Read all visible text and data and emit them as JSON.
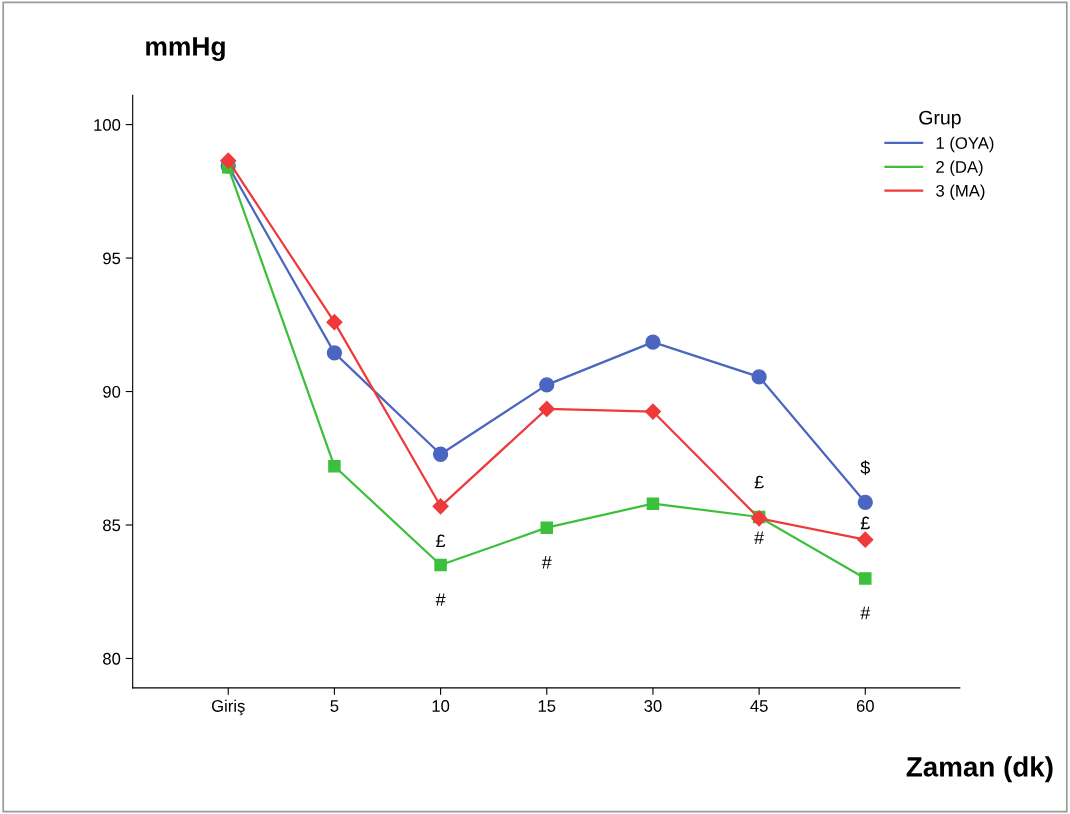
{
  "chart_data": {
    "type": "line",
    "ylabel": "mmHg",
    "xlabel": "Zaman (dk)",
    "legend_title": "Grup",
    "legend": "top right",
    "grid": false,
    "categories": [
      "Giriş",
      "5",
      "10",
      "15",
      "30",
      "45",
      "60"
    ],
    "ylim": [
      78.9,
      101.1
    ],
    "yticks": [
      80,
      85,
      90,
      95,
      100
    ],
    "series": [
      {
        "name": "1 (OYA)",
        "color": "#4a66c0",
        "marker": "circle",
        "values": [
          98.45,
          91.45,
          87.65,
          90.25,
          91.85,
          90.55,
          85.85
        ]
      },
      {
        "name": "2 (DA)",
        "color": "#3cc03c",
        "marker": "square",
        "values": [
          98.4,
          87.2,
          83.5,
          84.9,
          85.8,
          85.3,
          83.0
        ]
      },
      {
        "name": "3 (MA)",
        "color": "#ee3a3a",
        "marker": "diamond",
        "values": [
          98.65,
          92.6,
          85.7,
          89.35,
          89.25,
          85.25,
          84.45
        ]
      }
    ],
    "annotations": [
      {
        "text": "£",
        "x": "10",
        "y": 85.7
      },
      {
        "text": "#",
        "x": "10",
        "y": 83.5
      },
      {
        "text": "#",
        "x": "15",
        "y": 84.9
      },
      {
        "text": "£",
        "x": "45",
        "y": 85.3
      },
      {
        "text": "#",
        "x": "45",
        "y": 85.3
      },
      {
        "text": "$",
        "x": "60",
        "y": 85.85
      },
      {
        "text": "£",
        "x": "60",
        "y": 85.85
      },
      {
        "text": "#",
        "x": "60",
        "y": 83.0
      }
    ]
  }
}
